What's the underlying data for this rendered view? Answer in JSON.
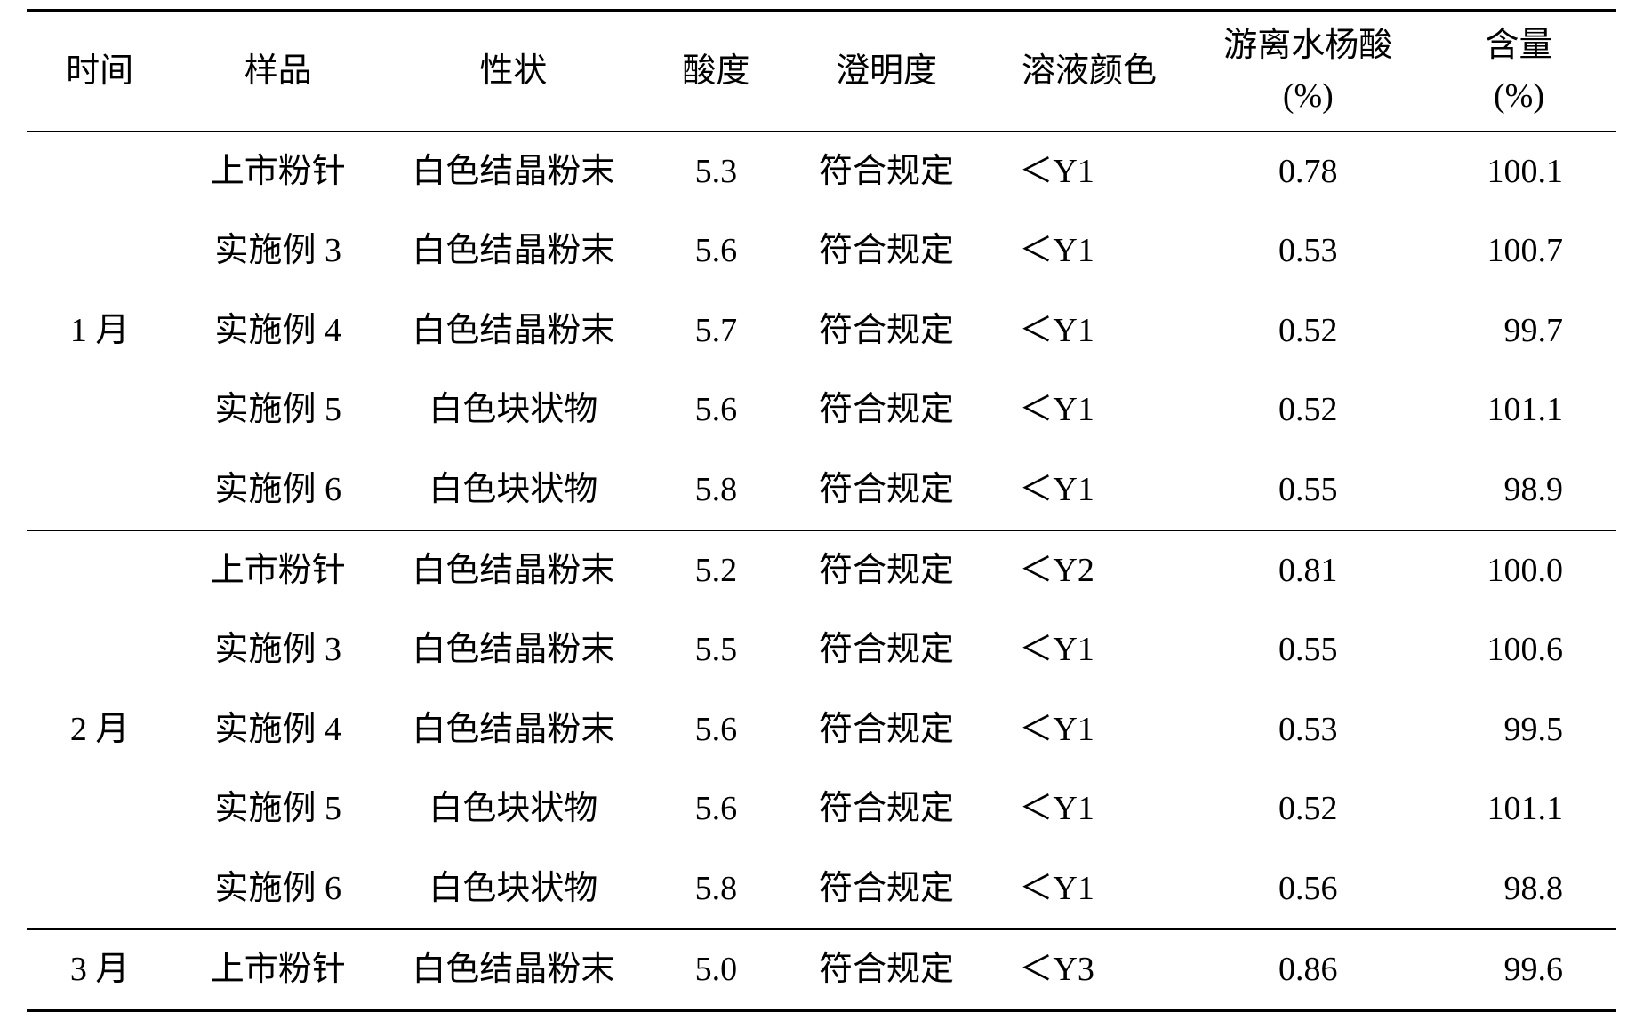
{
  "table": {
    "type": "table",
    "background_color": "#ffffff",
    "text_color": "#000000",
    "border_color": "#000000",
    "font_size_pt": 28,
    "headers": {
      "time": "时间",
      "sample": "样品",
      "appearance": "性状",
      "acidity": "酸度",
      "clarity": "澄明度",
      "solution_color": "溶液颜色",
      "free_salicylic_line1": "游离水杨酸",
      "free_salicylic_line2": "(%)",
      "content_line1": "含量",
      "content_line2": "(%)"
    },
    "groups": [
      {
        "time_label": "1 月",
        "rows": [
          {
            "sample": "上市粉针",
            "appearance": "白色结晶粉末",
            "acidity": "5.3",
            "clarity": "符合规定",
            "color": "＜Y1",
            "salicylic": "0.78",
            "content": "100.1"
          },
          {
            "sample": "实施例 3",
            "appearance": "白色结晶粉末",
            "acidity": "5.6",
            "clarity": "符合规定",
            "color": "＜Y1",
            "salicylic": "0.53",
            "content": "100.7"
          },
          {
            "sample": "实施例 4",
            "appearance": "白色结晶粉末",
            "acidity": "5.7",
            "clarity": "符合规定",
            "color": "＜Y1",
            "salicylic": "0.52",
            "content": "99.7"
          },
          {
            "sample": "实施例 5",
            "appearance": "白色块状物",
            "acidity": "5.6",
            "clarity": "符合规定",
            "color": "＜Y1",
            "salicylic": "0.52",
            "content": "101.1"
          },
          {
            "sample": "实施例 6",
            "appearance": "白色块状物",
            "acidity": "5.8",
            "clarity": "符合规定",
            "color": "＜Y1",
            "salicylic": "0.55",
            "content": "98.9"
          }
        ]
      },
      {
        "time_label": "2 月",
        "rows": [
          {
            "sample": "上市粉针",
            "appearance": "白色结晶粉末",
            "acidity": "5.2",
            "clarity": "符合规定",
            "color": "＜Y2",
            "salicylic": "0.81",
            "content": "100.0"
          },
          {
            "sample": "实施例 3",
            "appearance": "白色结晶粉末",
            "acidity": "5.5",
            "clarity": "符合规定",
            "color": "＜Y1",
            "salicylic": "0.55",
            "content": "100.6"
          },
          {
            "sample": "实施例 4",
            "appearance": "白色结晶粉末",
            "acidity": "5.6",
            "clarity": "符合规定",
            "color": "＜Y1",
            "salicylic": "0.53",
            "content": "99.5"
          },
          {
            "sample": "实施例 5",
            "appearance": "白色块状物",
            "acidity": "5.6",
            "clarity": "符合规定",
            "color": "＜Y1",
            "salicylic": "0.52",
            "content": "101.1"
          },
          {
            "sample": "实施例 6",
            "appearance": "白色块状物",
            "acidity": "5.8",
            "clarity": "符合规定",
            "color": "＜Y1",
            "salicylic": "0.56",
            "content": "98.8"
          }
        ]
      },
      {
        "time_label": "3 月",
        "rows": [
          {
            "sample": "上市粉针",
            "appearance": "白色结晶粉末",
            "acidity": "5.0",
            "clarity": "符合规定",
            "color": "＜Y3",
            "salicylic": "0.86",
            "content": "99.6"
          }
        ]
      }
    ]
  }
}
